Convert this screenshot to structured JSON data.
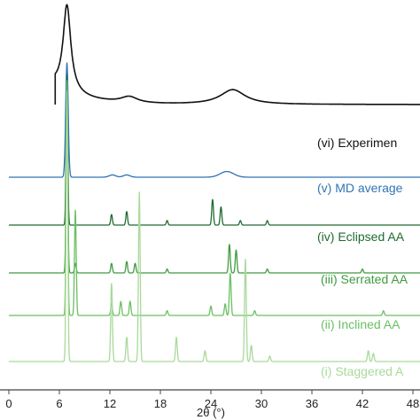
{
  "chart_data": {
    "type": "line",
    "xlabel": "2θ (°)",
    "ylabel": "",
    "xlim": [
      0,
      50
    ],
    "xticks": [
      0,
      6,
      12,
      18,
      24,
      30,
      36,
      42,
      48
    ],
    "grid": false,
    "stacked_offsets": true,
    "series": [
      {
        "name": "(vi) Experimen",
        "color": "#111111",
        "peaks": [
          [
            6.9,
            1.0,
            0.55
          ],
          [
            14.3,
            0.07,
            1.2
          ],
          [
            26.6,
            0.17,
            1.8
          ]
        ],
        "baseline_start_x": 5.5
      },
      {
        "name": "(v) MD average",
        "color": "#2e75b6",
        "peaks": [
          [
            6.9,
            1.0,
            0.15
          ],
          [
            12.3,
            0.02,
            0.4
          ],
          [
            14.0,
            0.02,
            0.4
          ],
          [
            25.9,
            0.05,
            0.8
          ]
        ]
      },
      {
        "name": "(iv) Eclipsed AA",
        "color": "#1e6b30",
        "peaks": [
          [
            6.9,
            1.0,
            0.1
          ],
          [
            12.2,
            0.07,
            0.1
          ],
          [
            14.0,
            0.09,
            0.1
          ],
          [
            18.8,
            0.03,
            0.1
          ],
          [
            24.2,
            0.17,
            0.1
          ],
          [
            25.2,
            0.12,
            0.1
          ],
          [
            27.5,
            0.03,
            0.1
          ],
          [
            30.7,
            0.03,
            0.1
          ]
        ]
      },
      {
        "name": "(iii) Serrated AA",
        "color": "#3f9a3f",
        "peaks": [
          [
            6.9,
            1.0,
            0.1
          ],
          [
            7.9,
            0.05,
            0.1
          ],
          [
            12.2,
            0.05,
            0.1
          ],
          [
            14.0,
            0.06,
            0.1
          ],
          [
            15.0,
            0.05,
            0.1
          ],
          [
            18.8,
            0.02,
            0.1
          ],
          [
            26.2,
            0.15,
            0.1
          ],
          [
            27.0,
            0.12,
            0.1
          ],
          [
            30.7,
            0.02,
            0.1
          ],
          [
            42.0,
            0.02,
            0.1
          ]
        ]
      },
      {
        "name": "(ii) Inclined AA",
        "color": "#6bbf62",
        "peaks": [
          [
            6.9,
            1.0,
            0.1
          ],
          [
            7.9,
            0.45,
            0.1
          ],
          [
            12.2,
            0.05,
            0.1
          ],
          [
            13.3,
            0.06,
            0.1
          ],
          [
            14.4,
            0.06,
            0.1
          ],
          [
            18.8,
            0.02,
            0.1
          ],
          [
            24.0,
            0.04,
            0.1
          ],
          [
            25.7,
            0.05,
            0.1
          ],
          [
            26.3,
            0.18,
            0.1
          ],
          [
            29.2,
            0.02,
            0.1
          ],
          [
            44.5,
            0.02,
            0.1
          ]
        ]
      },
      {
        "name": "(i) Staggered A",
        "color": "#a9d99b",
        "peaks": [
          [
            6.9,
            1.0,
            0.1
          ],
          [
            12.2,
            0.29,
            0.1
          ],
          [
            14.0,
            0.09,
            0.1
          ],
          [
            15.5,
            0.63,
            0.1
          ],
          [
            19.9,
            0.09,
            0.1
          ],
          [
            23.3,
            0.04,
            0.1
          ],
          [
            28.1,
            0.38,
            0.1
          ],
          [
            28.8,
            0.06,
            0.1
          ],
          [
            31.0,
            0.02,
            0.1
          ],
          [
            42.7,
            0.04,
            0.1
          ],
          [
            43.3,
            0.03,
            0.1
          ]
        ]
      }
    ]
  }
}
